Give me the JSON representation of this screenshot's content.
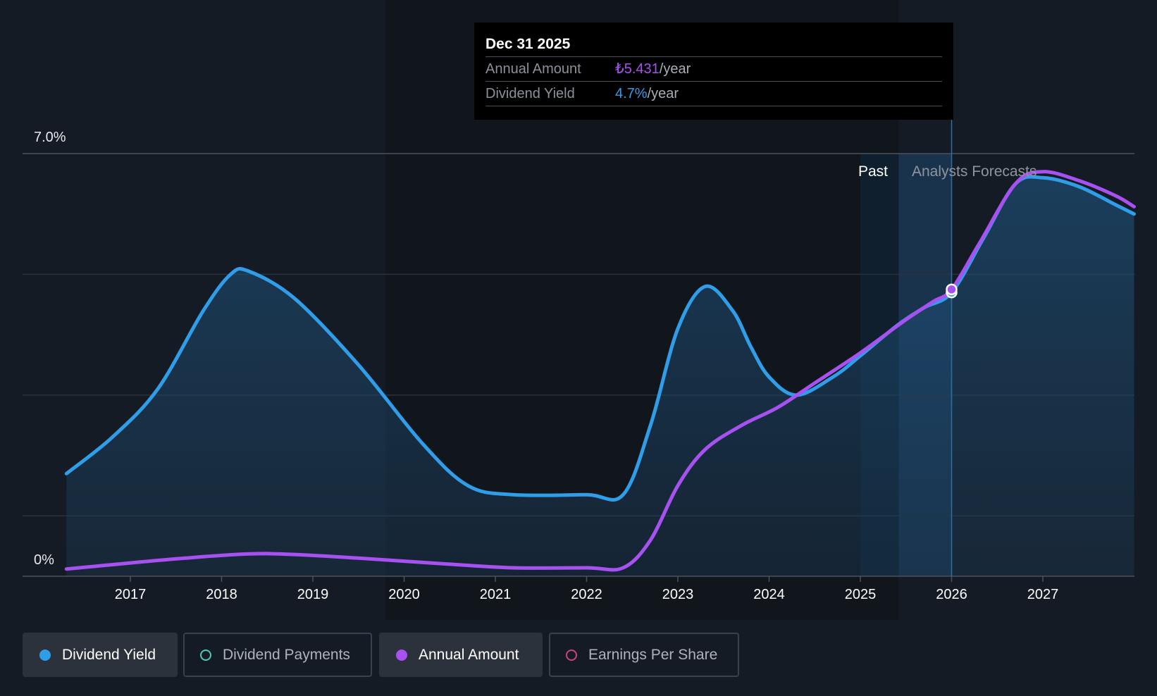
{
  "tooltip": {
    "date": "Dec 31 2025",
    "annual_amount_label": "Annual Amount",
    "annual_amount_value": "₺5.431",
    "annual_amount_unit": "/year",
    "dividend_yield_label": "Dividend Yield",
    "dividend_yield_value": "4.7%",
    "dividend_yield_unit": "/year"
  },
  "regions": {
    "past_label": "Past",
    "forecast_label": "Analysts Forecasts"
  },
  "legend": [
    {
      "label": "Dividend Yield",
      "color": "#2f9de8",
      "active": true,
      "filled": true
    },
    {
      "label": "Dividend Payments",
      "color": "#4fc9b8",
      "active": false,
      "filled": false
    },
    {
      "label": "Annual Amount",
      "color": "#a651f0",
      "active": true,
      "filled": true
    },
    {
      "label": "Earnings Per Share",
      "color": "#c8447a",
      "active": false,
      "filled": false
    }
  ],
  "chart_data": {
    "type": "line",
    "ylim": [
      0,
      7.0
    ],
    "y_tick_labels": [
      "7.0%",
      "0%"
    ],
    "xlim": [
      2016.0,
      2028.0
    ],
    "x_ticks": [
      2017,
      2018,
      2019,
      2020,
      2021,
      2022,
      2023,
      2024,
      2025,
      2026,
      2027
    ],
    "grid": true,
    "past_end": 2025.42,
    "highlight_x": 2026.0,
    "series": [
      {
        "name": "Dividend Yield",
        "color": "#2f9de8",
        "area": true,
        "points": [
          [
            2016.3,
            1.7
          ],
          [
            2016.8,
            2.3
          ],
          [
            2017.3,
            3.1
          ],
          [
            2017.8,
            4.4
          ],
          [
            2018.1,
            5.0
          ],
          [
            2018.3,
            5.05
          ],
          [
            2018.8,
            4.6
          ],
          [
            2019.5,
            3.5
          ],
          [
            2020.2,
            2.2
          ],
          [
            2020.7,
            1.5
          ],
          [
            2021.2,
            1.35
          ],
          [
            2022.0,
            1.35
          ],
          [
            2022.4,
            1.35
          ],
          [
            2022.7,
            2.5
          ],
          [
            2023.0,
            4.1
          ],
          [
            2023.3,
            4.8
          ],
          [
            2023.6,
            4.4
          ],
          [
            2023.8,
            3.8
          ],
          [
            2024.0,
            3.3
          ],
          [
            2024.3,
            3.0
          ],
          [
            2024.7,
            3.3
          ],
          [
            2025.0,
            3.65
          ],
          [
            2025.4,
            4.15
          ],
          [
            2025.7,
            4.45
          ],
          [
            2026.0,
            4.7
          ],
          [
            2026.35,
            5.6
          ],
          [
            2026.7,
            6.5
          ],
          [
            2027.0,
            6.6
          ],
          [
            2027.4,
            6.45
          ],
          [
            2027.8,
            6.15
          ],
          [
            2028.0,
            6.0
          ]
        ]
      },
      {
        "name": "Annual Amount",
        "color": "#a651f0",
        "area": false,
        "points": [
          [
            2016.3,
            0.12
          ],
          [
            2017.0,
            0.22
          ],
          [
            2017.6,
            0.3
          ],
          [
            2018.3,
            0.37
          ],
          [
            2018.8,
            0.36
          ],
          [
            2019.5,
            0.3
          ],
          [
            2020.5,
            0.2
          ],
          [
            2021.2,
            0.14
          ],
          [
            2022.0,
            0.14
          ],
          [
            2022.4,
            0.14
          ],
          [
            2022.7,
            0.6
          ],
          [
            2023.0,
            1.5
          ],
          [
            2023.3,
            2.1
          ],
          [
            2023.7,
            2.5
          ],
          [
            2024.1,
            2.8
          ],
          [
            2024.5,
            3.2
          ],
          [
            2025.0,
            3.7
          ],
          [
            2025.5,
            4.25
          ],
          [
            2025.8,
            4.55
          ],
          [
            2026.0,
            4.75
          ],
          [
            2026.3,
            5.5
          ],
          [
            2026.7,
            6.5
          ],
          [
            2027.0,
            6.7
          ],
          [
            2027.4,
            6.55
          ],
          [
            2027.8,
            6.3
          ],
          [
            2028.0,
            6.12
          ]
        ]
      }
    ]
  }
}
